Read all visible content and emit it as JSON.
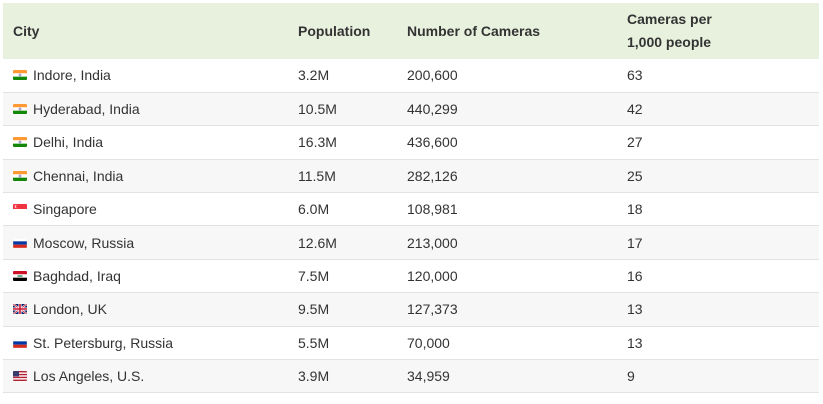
{
  "headers": {
    "city": "City",
    "population": "Population",
    "cameras": "Number of Cameras",
    "per_line1": "Cameras per",
    "per_line2": "1,000 people"
  },
  "rows": [
    {
      "city": "Indore, India",
      "flag": "india",
      "population": "3.2M",
      "cameras": "200,600",
      "per_1000": "63"
    },
    {
      "city": "Hyderabad, India",
      "flag": "india",
      "population": "10.5M",
      "cameras": "440,299",
      "per_1000": "42"
    },
    {
      "city": "Delhi, India",
      "flag": "india",
      "population": "16.3M",
      "cameras": "436,600",
      "per_1000": "27"
    },
    {
      "city": "Chennai, India",
      "flag": "india",
      "population": "11.5M",
      "cameras": "282,126",
      "per_1000": "25"
    },
    {
      "city": "Singapore",
      "flag": "singapore",
      "population": "6.0M",
      "cameras": "108,981",
      "per_1000": "18"
    },
    {
      "city": "Moscow, Russia",
      "flag": "russia",
      "population": "12.6M",
      "cameras": "213,000",
      "per_1000": "17"
    },
    {
      "city": "Baghdad, Iraq",
      "flag": "iraq",
      "population": "7.5M",
      "cameras": "120,000",
      "per_1000": "16"
    },
    {
      "city": "London, UK",
      "flag": "uk",
      "population": "9.5M",
      "cameras": "127,373",
      "per_1000": "13"
    },
    {
      "city": "St. Petersburg, Russia",
      "flag": "russia",
      "population": "5.5M",
      "cameras": "70,000",
      "per_1000": "13"
    },
    {
      "city": "Los Angeles, U.S.",
      "flag": "usa",
      "population": "3.9M",
      "cameras": "34,959",
      "per_1000": "9"
    }
  ],
  "colors": {
    "header_bg": "#e8f1de",
    "row_alt_bg": "#f7f7f7",
    "text": "#333333"
  }
}
